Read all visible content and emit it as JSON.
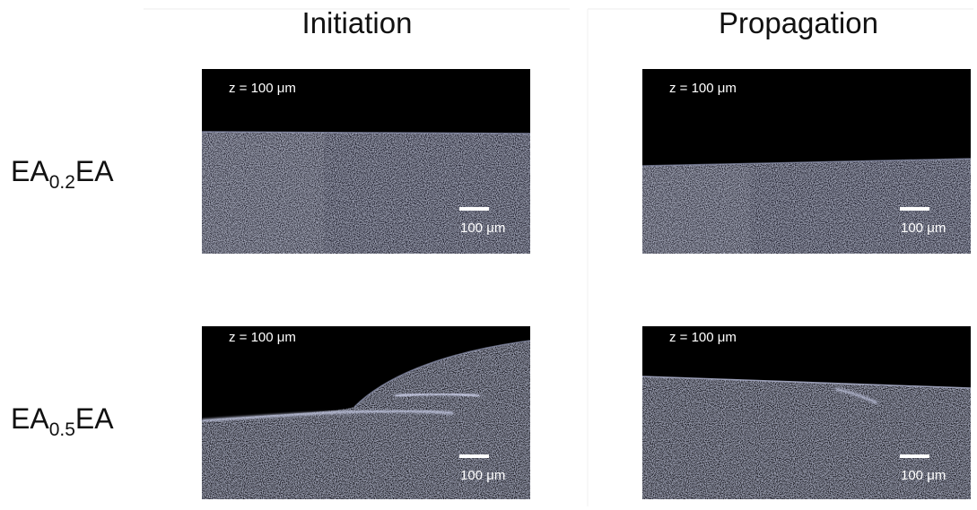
{
  "columns": [
    {
      "title": "Initiation"
    },
    {
      "title": "Propagation"
    }
  ],
  "rows": [
    {
      "label": {
        "base": "EA",
        "sub": "0.2",
        "tail": "EA"
      },
      "panels": [
        {
          "depth": "z = 100 μm",
          "scale": "100 μm"
        },
        {
          "depth": "z = 100 μm",
          "scale": "100 μm"
        }
      ]
    },
    {
      "label": {
        "base": "EA",
        "sub": "0.5",
        "tail": "EA"
      },
      "panels": [
        {
          "depth": "z = 100 μm",
          "scale": "100 μm"
        },
        {
          "depth": "z = 100 μm",
          "scale": "100 μm"
        }
      ]
    }
  ]
}
